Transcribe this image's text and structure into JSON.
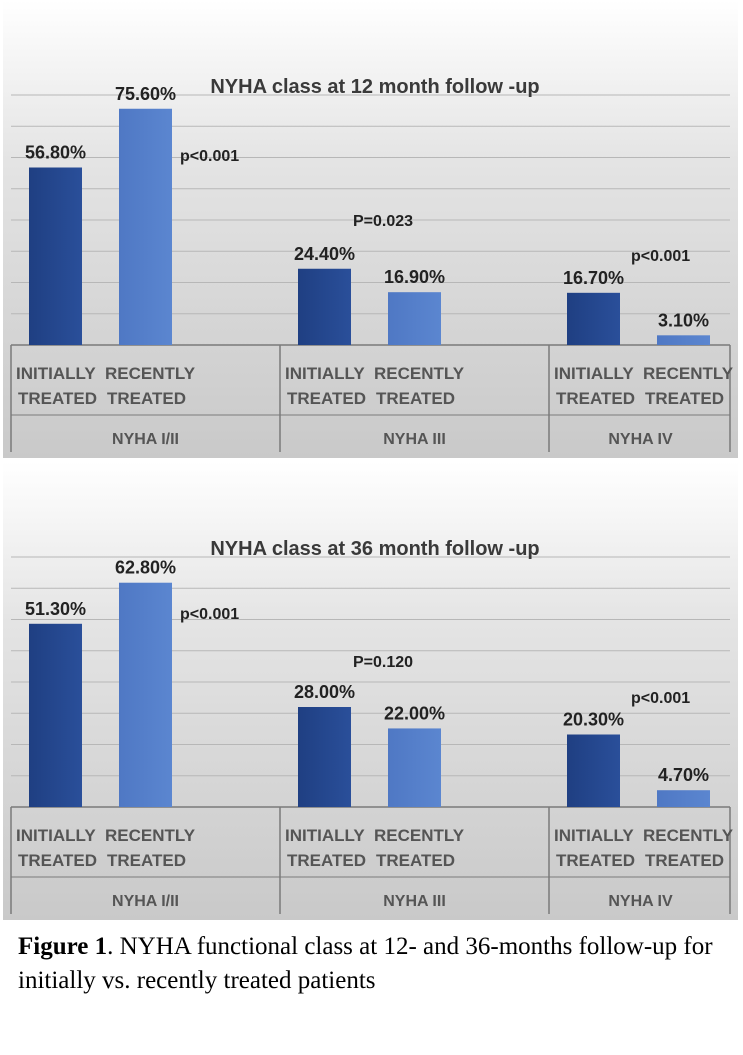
{
  "chart_data": [
    {
      "type": "bar",
      "title": "NYHA class at 12 month follow -up",
      "ylim": [
        0,
        80
      ],
      "grid": true,
      "bar_colors": [
        "#2a4f9a",
        "#5b86d0"
      ],
      "x_labels": {
        "bar_labels": [
          "INITIALLY TREATED",
          "RECENTLY TREATED"
        ],
        "groups": [
          "NYHA I/II",
          "NYHA III",
          "NYHA IV"
        ]
      },
      "groups": [
        {
          "group": "NYHA I/II",
          "bars": [
            {
              "label": "INITIALLY TREATED",
              "value": 56.8,
              "value_text": "56.80%"
            },
            {
              "label": "RECENTLY TREATED",
              "value": 75.6,
              "value_text": "75.60%"
            }
          ],
          "p_value": "p<0.001"
        },
        {
          "group": "NYHA III",
          "bars": [
            {
              "label": "INITIALLY TREATED",
              "value": 24.4,
              "value_text": "24.40%"
            },
            {
              "label": "RECENTLY TREATED",
              "value": 16.9,
              "value_text": "16.90%"
            }
          ],
          "p_value": "P=0.023"
        },
        {
          "group": "NYHA IV",
          "bars": [
            {
              "label": "INITIALLY TREATED",
              "value": 16.7,
              "value_text": "16.70%"
            },
            {
              "label": "RECENTLY TREATED",
              "value": 3.1,
              "value_text": "3.10%"
            }
          ],
          "p_value": "p<0.001"
        }
      ]
    },
    {
      "type": "bar",
      "title": "NYHA class at 36 month follow -up",
      "ylim": [
        0,
        70
      ],
      "grid": true,
      "bar_colors": [
        "#2a4f9a",
        "#5b86d0"
      ],
      "x_labels": {
        "bar_labels": [
          "INITIALLY TREATED",
          "RECENTLY TREATED"
        ],
        "groups": [
          "NYHA I/II",
          "NYHA III",
          "NYHA IV"
        ]
      },
      "groups": [
        {
          "group": "NYHA I/II",
          "bars": [
            {
              "label": "INITIALLY TREATED",
              "value": 51.3,
              "value_text": "51.30%"
            },
            {
              "label": "RECENTLY TREATED",
              "value": 62.8,
              "value_text": "62.80%"
            }
          ],
          "p_value": "p<0.001"
        },
        {
          "group": "NYHA III",
          "bars": [
            {
              "label": "INITIALLY TREATED",
              "value": 28.0,
              "value_text": "28.00%"
            },
            {
              "label": "RECENTLY TREATED",
              "value": 22.0,
              "value_text": "22.00%"
            }
          ],
          "p_value": "P=0.120"
        },
        {
          "group": "NYHA IV",
          "bars": [
            {
              "label": "INITIALLY TREATED",
              "value": 20.3,
              "value_text": "20.30%"
            },
            {
              "label": "RECENTLY TREATED",
              "value": 4.7,
              "value_text": "4.70%"
            }
          ],
          "p_value": "p<0.001"
        }
      ]
    }
  ],
  "caption": {
    "label": "Figure 1",
    "text": ". NYHA functional class at 12- and 36-months follow-up for initially vs. recently treated patients"
  }
}
